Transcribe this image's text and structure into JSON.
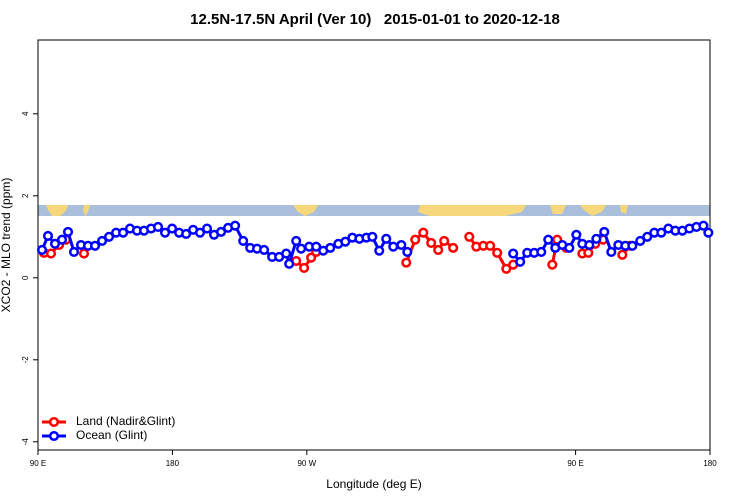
{
  "chart_data": {
    "type": "line",
    "title": "12.5N-17.5N April (Ver 10)   2015-01-01 to 2020-12-18",
    "x_label": "Longitude (deg E)",
    "y_label": "XCO2 - MLO trend (ppm)",
    "xlim": [
      90,
      540
    ],
    "xticks": [
      {
        "value": 90,
        "label": "90 E"
      },
      {
        "value": 180,
        "label": "180"
      },
      {
        "value": 270,
        "label": "90 W"
      },
      {
        "value": 450,
        "label": "90 E"
      },
      {
        "value": 540,
        "label": "180"
      }
    ],
    "ylim": [
      -4.2,
      5.8
    ],
    "yticks": [
      -4,
      -2,
      0,
      2,
      4
    ],
    "legend": "bottom-left",
    "series": [
      {
        "name": "Land (Nadir&Glint)",
        "color": "#ff0000",
        "x": [
          94,
          98.7,
          104.1,
          108.8,
          115,
          120.8,
          190,
          262.9,
          268.2,
          272.9,
          276.3,
          300,
          336.6,
          342.6,
          348,
          353.3,
          358,
          362,
          368,
          373,
          378.8,
          383.5,
          388.2,
          392.8,
          397.5,
          403.6,
          408.2,
          420,
          434.4,
          437.7,
          443.8,
          450,
          454.5,
          458.5,
          463.2,
          468.5,
          475,
          481.3,
          486.6
        ],
        "values": [
          0.61,
          0.59,
          0.8,
          0.93,
          null,
          0.59,
          null,
          0.41,
          0.24,
          0.49,
          0.63,
          null,
          0.37,
          0.93,
          1.1,
          0.85,
          0.68,
          0.9,
          0.73,
          null,
          1.0,
          0.76,
          0.78,
          0.78,
          0.61,
          0.22,
          0.32,
          null,
          0.32,
          0.93,
          0.73,
          null,
          0.59,
          0.61,
          0.83,
          0.93,
          null,
          0.56,
          0.78
        ]
      },
      {
        "name": "Ocean (Glint)",
        "color": "#0000ff",
        "x": [
          92.7,
          96.7,
          101.4,
          106.1,
          110.1,
          114.1,
          118.8,
          123.5,
          128.2,
          132.9,
          137.6,
          142.3,
          147,
          151.6,
          156.3,
          161,
          165.7,
          170.4,
          175.1,
          179.8,
          184.5,
          189.2,
          193.9,
          198.5,
          203.2,
          207.9,
          212.6,
          217.3,
          222,
          227.4,
          232.1,
          236.7,
          241.4,
          246.8,
          251.5,
          256.2,
          258.2,
          262.9,
          266.2,
          271.6,
          276.3,
          281,
          285.7,
          291.1,
          295.8,
          300.5,
          305.2,
          309.9,
          313.9,
          318.5,
          323.2,
          327.9,
          333.3,
          337.3,
          370,
          408.2,
          412.9,
          417.6,
          422.3,
          427,
          431.7,
          436.4,
          441.1,
          445.8,
          450.5,
          454.5,
          459.2,
          463.9,
          469.2,
          473.9,
          478.6,
          483.3,
          488,
          493.3,
          498,
          502.7,
          507.4,
          512.1,
          516.8,
          521.5,
          526.2,
          530.9,
          535.6,
          538.9
        ],
        "values": [
          0.68,
          1.02,
          0.83,
          0.93,
          1.12,
          0.63,
          0.8,
          0.78,
          0.78,
          0.9,
          1.0,
          1.1,
          1.1,
          1.2,
          1.15,
          1.15,
          1.2,
          1.24,
          1.1,
          1.2,
          1.1,
          1.07,
          1.17,
          1.1,
          1.2,
          1.05,
          1.12,
          1.22,
          1.27,
          0.9,
          0.73,
          0.71,
          0.68,
          0.51,
          0.51,
          0.59,
          0.34,
          0.9,
          0.71,
          0.76,
          0.76,
          0.66,
          0.73,
          0.83,
          0.88,
          0.98,
          0.95,
          0.98,
          1.0,
          0.66,
          0.95,
          0.76,
          0.8,
          0.63,
          null,
          0.59,
          0.39,
          0.61,
          0.61,
          0.63,
          0.93,
          0.73,
          0.8,
          0.73,
          1.05,
          0.83,
          0.8,
          0.95,
          1.12,
          0.63,
          0.8,
          0.78,
          0.78,
          0.9,
          1.0,
          1.1,
          1.1,
          1.2,
          1.15,
          1.15,
          1.2,
          1.24,
          1.27,
          1.1
        ]
      }
    ]
  }
}
